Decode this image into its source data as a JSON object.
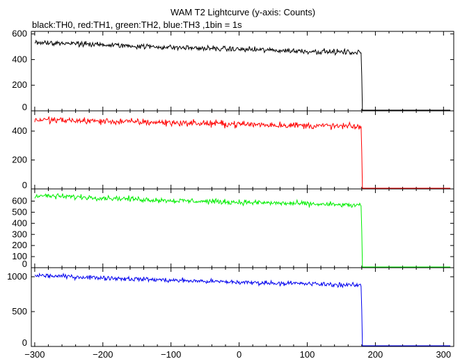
{
  "chart_data": {
    "type": "line",
    "title": "WAM T2 Lightcurve (y-axis: Counts)",
    "subtitle": "black:TH0, red:TH1, green:TH2, blue:TH3 ,1bin = 1s",
    "xlim": [
      -305,
      315
    ],
    "x_ticks": [
      -300,
      -200,
      -100,
      0,
      100,
      200,
      300
    ],
    "drop_x": 181,
    "panels": [
      {
        "name": "TH0",
        "color": "#000000",
        "ylim": [
          0,
          620
        ],
        "y_ticks": [
          0,
          200,
          400,
          600
        ],
        "trend": [
          {
            "x": -300,
            "y": 535
          },
          {
            "x": -200,
            "y": 515
          },
          {
            "x": -100,
            "y": 495
          },
          {
            "x": 0,
            "y": 480
          },
          {
            "x": 100,
            "y": 465
          },
          {
            "x": 179,
            "y": 455
          }
        ],
        "tail": {
          "from": 181,
          "to": 310,
          "y": 2
        },
        "noise": 18
      },
      {
        "name": "TH1",
        "color": "#ff0000",
        "ylim": [
          0,
          540
        ],
        "y_ticks": [
          0,
          200,
          400
        ],
        "trend": [
          {
            "x": -300,
            "y": 478
          },
          {
            "x": -200,
            "y": 468
          },
          {
            "x": -100,
            "y": 458
          },
          {
            "x": 0,
            "y": 448
          },
          {
            "x": 100,
            "y": 438
          },
          {
            "x": 179,
            "y": 430
          }
        ],
        "tail": {
          "from": 181,
          "to": 310,
          "y": 2
        },
        "noise": 20
      },
      {
        "name": "TH2",
        "color": "#00ee00",
        "ylim": [
          0,
          710
        ],
        "y_ticks": [
          0,
          100,
          200,
          300,
          400,
          500,
          600
        ],
        "trend": [
          {
            "x": -300,
            "y": 650
          },
          {
            "x": -200,
            "y": 630
          },
          {
            "x": -100,
            "y": 605
          },
          {
            "x": 0,
            "y": 590
          },
          {
            "x": 100,
            "y": 575
          },
          {
            "x": 179,
            "y": 560
          }
        ],
        "tail": {
          "from": 181,
          "to": 310,
          "y": 2
        },
        "noise": 20
      },
      {
        "name": "TH3",
        "color": "#0000ee",
        "ylim": [
          0,
          1130
        ],
        "y_ticks": [
          0,
          500,
          1000
        ],
        "trend": [
          {
            "x": -300,
            "y": 1020
          },
          {
            "x": -200,
            "y": 985
          },
          {
            "x": -100,
            "y": 950
          },
          {
            "x": 0,
            "y": 920
          },
          {
            "x": 100,
            "y": 900
          },
          {
            "x": 179,
            "y": 875
          }
        ],
        "tail": {
          "from": 181,
          "to": 310,
          "y": 3
        },
        "noise": 28
      }
    ]
  }
}
